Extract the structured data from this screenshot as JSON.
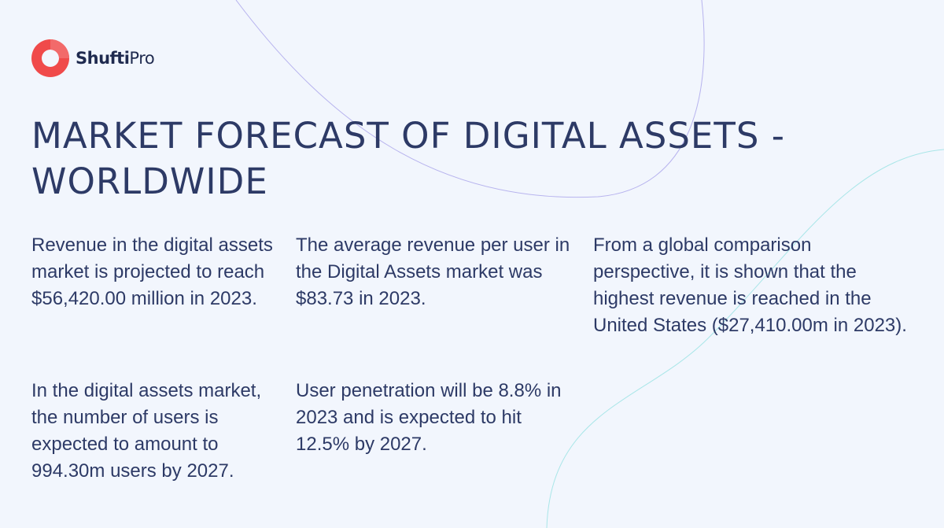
{
  "brand": {
    "name_bold": "Shufti",
    "name_light": "Pro",
    "accent": "#f04a4a"
  },
  "title_line1": "MARKET FORECAST OF DIGITAL ASSETS -",
  "title_line2": "WORLDWIDE",
  "stats": [
    "Revenue in the digital assets market is projected to reach $56,420.00 million in 2023.",
    "The average revenue per user in the Digital Assets market was $83.73 in 2023.",
    "From a global comparison perspective, it is shown that the highest revenue is reached in the United States ($27,410.00m in 2023).",
    "In the digital assets market, the number of users is expected to amount to 994.30m users by 2027.",
    "User penetration will be 8.8% in 2023 and is expected to hit 12.5% by 2027."
  ],
  "colors": {
    "background": "#f2f6fd",
    "text": "#2d3a66",
    "curve_purple": "#b7b3ee",
    "curve_teal": "#9fe3e6"
  }
}
